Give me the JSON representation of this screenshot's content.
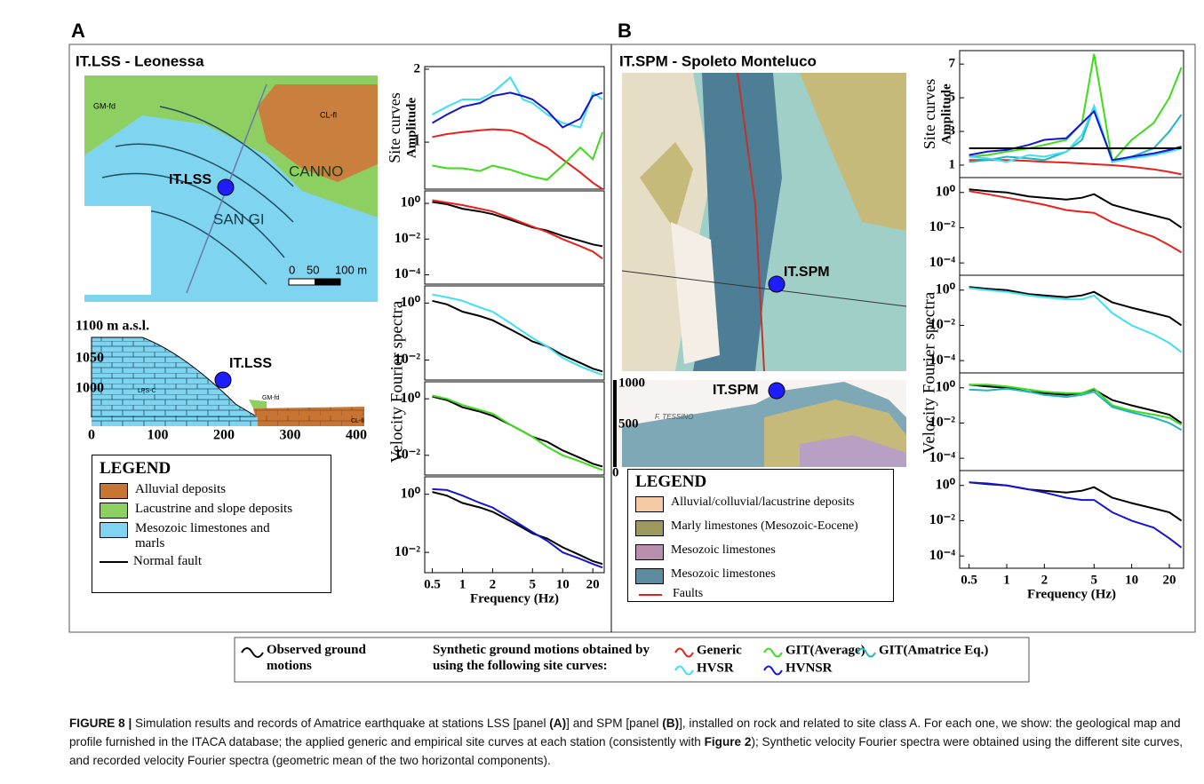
{
  "figure": {
    "panel_a": {
      "letter": "A",
      "title": "IT.LSS - Leonessa",
      "station": "IT.LSS",
      "map_labels": [
        "CANNO",
        "SAN GI",
        "GM-fd",
        "CL-fl"
      ],
      "scale": [
        "0",
        "50",
        "100 m"
      ],
      "profile_title": "1100 m a.s.l.",
      "profile_yticks": [
        1050,
        1000
      ],
      "profile_xticks": [
        0,
        100,
        200,
        300,
        400
      ],
      "profile_labels": [
        "LPS-C",
        "GM-fd",
        "CL-fl"
      ],
      "legend": {
        "title": "LEGEND",
        "items": [
          "Alluvial deposits",
          "Lacustrine and slope deposits",
          "Mesozoic limestones and marls",
          "Normal fault"
        ]
      },
      "spectra_label": "Velocity Fourier spectra"
    },
    "panel_b": {
      "letter": "B",
      "title": "IT.SPM - Spoleto Monteluco",
      "station": "IT.SPM",
      "profile_yticks": [
        1000,
        500,
        0
      ],
      "profile_label": "F. TESSINO",
      "legend": {
        "title": "LEGEND",
        "items": [
          "Alluvial/colluvial/lacustrine deposits",
          "Marly limestones (Mesozoic-Eocene)",
          "Mesozoic limestones",
          "Mesozoic limestones",
          "Faults"
        ]
      },
      "spectra_label": "Velocity Fourier spectra"
    },
    "legend": {
      "observed": "Observed ground motions",
      "synthetic": "Synthetic ground motions obtained by using the following site curves:",
      "entries": [
        {
          "name": "Generic",
          "color": "#e8201c"
        },
        {
          "name": "GIT(Average)",
          "color": "#3ddc1a"
        },
        {
          "name": "GIT(Amatrice Eq.)",
          "color": "#1fb5c0"
        },
        {
          "name": "HVSR",
          "color": "#3de0f0"
        },
        {
          "name": "HVNSR",
          "color": "#1515d0"
        }
      ]
    },
    "caption": [
      {
        "text": "FIGURE 8 |",
        "bold": true
      },
      {
        "text": " Simulation results and records of Amatrice earthquake at stations LSS [panel ",
        "bold": false
      },
      {
        "text": "(A)",
        "bold": true
      },
      {
        "text": "] and SPM [panel ",
        "bold": false
      },
      {
        "text": "(B)",
        "bold": true
      },
      {
        "text": "], installed on rock and related to site class A. For each one, we show: the geological map and profile furnished in the ITACA database; the applied generic and empirical site curves at each station (consistently with ",
        "bold": false
      },
      {
        "text": "Figure 2",
        "bold": true
      },
      {
        "text": "); Synthetic velocity Fourier spectra were obtained using the different site curves, and recorded velocity Fourier spectra (geometric mean of the two horizontal components).",
        "bold": false
      }
    ]
  },
  "chart_data": [
    {
      "type": "line",
      "title": "Site curves",
      "ylabel": "Amplitude",
      "log_x": true,
      "log_y": true,
      "xlim": [
        0.42,
        26
      ],
      "ylim": [
        0.64,
        2.05
      ],
      "yticks": [
        1,
        2
      ],
      "x": [
        0.5,
        0.7,
        1,
        1.5,
        2,
        3,
        4,
        5,
        7,
        10,
        15,
        20,
        25
      ],
      "series": [
        {
          "color": "#e8201c",
          "values": [
            1.05,
            1.08,
            1.1,
            1.12,
            1.13,
            1.12,
            1.08,
            1.02,
            0.95,
            0.85,
            0.75,
            0.68,
            0.64
          ]
        },
        {
          "color": "#3ddc1a",
          "values": [
            0.8,
            0.78,
            0.78,
            0.76,
            0.8,
            0.77,
            0.74,
            0.72,
            0.7,
            0.8,
            0.95,
            0.85,
            1.1
          ]
        },
        {
          "color": "#3de0f0",
          "values": [
            1.3,
            1.4,
            1.5,
            1.5,
            1.6,
            1.85,
            1.5,
            1.45,
            1.3,
            1.2,
            1.15,
            1.6,
            1.5
          ]
        },
        {
          "color": "#1515d0",
          "values": [
            1.2,
            1.3,
            1.4,
            1.45,
            1.55,
            1.6,
            1.55,
            1.5,
            1.35,
            1.15,
            1.25,
            1.55,
            1.6
          ]
        }
      ]
    },
    {
      "type": "line",
      "log_x": true,
      "log_y": true,
      "xlim": [
        0.42,
        26
      ],
      "ylim": [
        3e-05,
        5
      ],
      "yticks": [
        {
          "value": 1,
          "label": "10⁰"
        },
        {
          "value": 0.01,
          "label": "10⁻²"
        },
        {
          "value": 0.0001,
          "label": "10⁻⁴"
        }
      ],
      "x": [
        0.5,
        0.7,
        1,
        1.5,
        2,
        3,
        4,
        5,
        7,
        10,
        15,
        20,
        25
      ],
      "series": [
        {
          "color": "#000000",
          "values": [
            1.2,
            0.9,
            0.5,
            0.35,
            0.25,
            0.12,
            0.07,
            0.045,
            0.03,
            0.015,
            0.008,
            0.005,
            0.004
          ]
        },
        {
          "color": "#e8201c",
          "values": [
            1.5,
            1.1,
            0.8,
            0.5,
            0.35,
            0.15,
            0.08,
            0.05,
            0.025,
            0.01,
            0.004,
            0.002,
            0.0008
          ]
        }
      ]
    },
    {
      "type": "line",
      "log_x": true,
      "log_y": true,
      "xlim": [
        0.42,
        26
      ],
      "ylim": [
        0.002,
        4
      ],
      "yticks": [
        {
          "value": 1,
          "label": "10⁰"
        },
        {
          "value": 0.01,
          "label": "10⁻²"
        }
      ],
      "x": [
        0.5,
        0.7,
        1,
        1.5,
        2,
        3,
        4,
        5,
        7,
        10,
        15,
        20,
        25
      ],
      "series": [
        {
          "color": "#000000",
          "values": [
            1.2,
            0.9,
            0.5,
            0.35,
            0.25,
            0.12,
            0.07,
            0.045,
            0.03,
            0.015,
            0.008,
            0.005,
            0.004
          ]
        },
        {
          "color": "#3de0f0",
          "values": [
            2,
            1.6,
            1.2,
            0.7,
            0.5,
            0.2,
            0.1,
            0.06,
            0.03,
            0.012,
            0.006,
            0.004,
            0.003
          ]
        }
      ]
    },
    {
      "type": "line",
      "log_x": true,
      "log_y": true,
      "xlim": [
        0.42,
        26
      ],
      "ylim": [
        0.002,
        4
      ],
      "yticks": [
        {
          "value": 1,
          "label": "10⁰"
        },
        {
          "value": 0.01,
          "label": "10⁻²"
        }
      ],
      "x": [
        0.5,
        0.7,
        1,
        1.5,
        2,
        3,
        4,
        5,
        7,
        10,
        15,
        20,
        25
      ],
      "series": [
        {
          "color": "#000000",
          "values": [
            1.2,
            0.9,
            0.5,
            0.35,
            0.25,
            0.12,
            0.07,
            0.045,
            0.03,
            0.015,
            0.008,
            0.005,
            0.004
          ]
        },
        {
          "color": "#3ddc1a",
          "values": [
            1.3,
            1.0,
            0.6,
            0.4,
            0.3,
            0.12,
            0.07,
            0.045,
            0.02,
            0.01,
            0.006,
            0.004,
            0.003
          ]
        }
      ]
    },
    {
      "type": "line",
      "xlabel": "Frequency (Hz)",
      "log_x": true,
      "log_y": true,
      "xlim": [
        0.42,
        26
      ],
      "ylim": [
        0.002,
        4
      ],
      "yticks": [
        {
          "value": 1,
          "label": "10⁰"
        },
        {
          "value": 0.01,
          "label": "10⁻²"
        }
      ],
      "xticks": [
        0.5,
        1,
        2,
        5,
        10,
        20
      ],
      "x": [
        0.5,
        0.7,
        1,
        1.5,
        2,
        3,
        4,
        5,
        7,
        10,
        15,
        20,
        25
      ],
      "series": [
        {
          "color": "#000000",
          "values": [
            1.2,
            0.9,
            0.5,
            0.35,
            0.25,
            0.12,
            0.07,
            0.045,
            0.03,
            0.015,
            0.008,
            0.005,
            0.004
          ]
        },
        {
          "color": "#1515d0",
          "values": [
            1.5,
            1.4,
            0.9,
            0.5,
            0.35,
            0.15,
            0.08,
            0.05,
            0.025,
            0.01,
            0.006,
            0.004,
            0.003
          ]
        }
      ]
    },
    {
      "type": "line",
      "title": "Site curves",
      "ylabel": "Amplitude",
      "log_x": true,
      "log_y": false,
      "xlim": [
        0.42,
        26
      ],
      "ylim": [
        0.26,
        7.8
      ],
      "yticks": [
        1,
        3,
        5,
        7
      ],
      "x": [
        0.5,
        0.7,
        1,
        1.5,
        2,
        3,
        4,
        5,
        7,
        10,
        15,
        20,
        25
      ],
      "series": [
        {
          "color": "#e8201c",
          "values": [
            1.3,
            1.3,
            1.3,
            1.25,
            1.2,
            1.15,
            1.1,
            1.05,
            1.0,
            0.9,
            0.75,
            0.6,
            0.45
          ]
        },
        {
          "color": "#3ddc1a",
          "values": [
            1.5,
            1.6,
            1.8,
            2.0,
            2.2,
            2.5,
            3.5,
            7.6,
            1.2,
            2.5,
            3.5,
            5,
            6.8
          ]
        },
        {
          "color": "#1fb5c0",
          "values": [
            1.2,
            1.3,
            1.5,
            1.4,
            1.3,
            1.8,
            2.5,
            4.5,
            1.2,
            1.5,
            2.0,
            3.0,
            4.0
          ]
        },
        {
          "color": "#3de0f0",
          "values": [
            1.5,
            1.4,
            1.2,
            1.6,
            1.5,
            1.8,
            2.8,
            4.5,
            1.2,
            1.4,
            1.6,
            1.8,
            2.0
          ]
        },
        {
          "color": "#1515d0",
          "values": [
            1.6,
            1.8,
            1.9,
            2.2,
            2.5,
            2.6,
            3.5,
            4.2,
            1.3,
            1.5,
            1.7,
            1.9,
            2.1
          ]
        },
        {
          "color": "#000000",
          "values": [
            2,
            2,
            2,
            2,
            2,
            2,
            2,
            2,
            2,
            2,
            2,
            2,
            2
          ]
        }
      ]
    },
    {
      "type": "line",
      "log_x": true,
      "log_y": true,
      "xlim": [
        0.42,
        26
      ],
      "ylim": [
        2e-05,
        7
      ],
      "yticks": [
        {
          "value": 1,
          "label": "10⁰"
        },
        {
          "value": 0.01,
          "label": "10⁻²"
        },
        {
          "value": 0.0001,
          "label": "10⁻⁴"
        }
      ],
      "x": [
        0.5,
        0.7,
        1,
        1.5,
        2,
        3,
        4,
        5,
        7,
        10,
        15,
        20,
        25
      ],
      "series": [
        {
          "color": "#000000",
          "values": [
            1.5,
            1.2,
            1.0,
            0.6,
            0.5,
            0.4,
            0.5,
            0.8,
            0.2,
            0.1,
            0.05,
            0.03,
            0.01
          ]
        },
        {
          "color": "#e8201c",
          "values": [
            1.2,
            0.8,
            0.5,
            0.3,
            0.2,
            0.1,
            0.08,
            0.07,
            0.02,
            0.008,
            0.003,
            0.001,
            0.0004
          ]
        }
      ]
    },
    {
      "type": "line",
      "log_x": true,
      "log_y": true,
      "xlim": [
        0.42,
        26
      ],
      "ylim": [
        2e-05,
        7
      ],
      "yticks": [
        {
          "value": 1,
          "label": "10⁰"
        },
        {
          "value": 0.01,
          "label": "10⁻²"
        },
        {
          "value": 0.0001,
          "label": "10⁻⁴"
        }
      ],
      "x": [
        0.5,
        0.7,
        1,
        1.5,
        2,
        3,
        4,
        5,
        7,
        10,
        15,
        20,
        25
      ],
      "series": [
        {
          "color": "#000000",
          "values": [
            1.5,
            1.2,
            1.0,
            0.6,
            0.5,
            0.4,
            0.5,
            0.8,
            0.2,
            0.1,
            0.05,
            0.03,
            0.01
          ]
        },
        {
          "color": "#3de0f0",
          "values": [
            1.3,
            1.0,
            0.8,
            0.5,
            0.4,
            0.3,
            0.3,
            0.5,
            0.05,
            0.01,
            0.003,
            0.001,
            0.0003
          ]
        }
      ]
    },
    {
      "type": "line",
      "log_x": true,
      "log_y": true,
      "xlim": [
        0.42,
        26
      ],
      "ylim": [
        2e-05,
        7
      ],
      "yticks": [
        {
          "value": 1,
          "label": "10⁰"
        },
        {
          "value": 0.01,
          "label": "10⁻²"
        },
        {
          "value": 0.0001,
          "label": "10⁻⁴"
        }
      ],
      "x": [
        0.5,
        0.7,
        1,
        1.5,
        2,
        3,
        4,
        5,
        7,
        10,
        15,
        20,
        25
      ],
      "series": [
        {
          "color": "#000000",
          "values": [
            1.5,
            1.2,
            1.0,
            0.6,
            0.5,
            0.4,
            0.5,
            0.8,
            0.2,
            0.1,
            0.05,
            0.03,
            0.01
          ]
        },
        {
          "color": "#3ddc1a",
          "values": [
            1.5,
            1.5,
            1.2,
            0.8,
            0.6,
            0.5,
            0.5,
            0.9,
            0.1,
            0.05,
            0.03,
            0.02,
            0.008
          ]
        },
        {
          "color": "#1fb5c0",
          "values": [
            0.8,
            0.7,
            0.9,
            0.6,
            0.4,
            0.3,
            0.4,
            0.6,
            0.08,
            0.04,
            0.02,
            0.01,
            0.004
          ]
        }
      ]
    },
    {
      "type": "line",
      "xlabel": "Frequency (Hz)",
      "log_x": true,
      "log_y": true,
      "xlim": [
        0.42,
        26
      ],
      "ylim": [
        2e-05,
        7
      ],
      "yticks": [
        {
          "value": 1,
          "label": "10⁰"
        },
        {
          "value": 0.01,
          "label": "10⁻²"
        },
        {
          "value": 0.0001,
          "label": "10⁻⁴"
        }
      ],
      "xticks": [
        0.5,
        1,
        2,
        5,
        10,
        20
      ],
      "x": [
        0.5,
        0.7,
        1,
        1.5,
        2,
        3,
        4,
        5,
        7,
        10,
        15,
        20,
        25
      ],
      "series": [
        {
          "color": "#000000",
          "values": [
            1.5,
            1.2,
            1.0,
            0.6,
            0.5,
            0.4,
            0.5,
            0.8,
            0.2,
            0.1,
            0.05,
            0.03,
            0.01
          ]
        },
        {
          "color": "#1515d0",
          "values": [
            1.5,
            1.3,
            1.0,
            0.6,
            0.4,
            0.2,
            0.15,
            0.15,
            0.03,
            0.01,
            0.004,
            0.001,
            0.0003
          ]
        }
      ]
    }
  ]
}
